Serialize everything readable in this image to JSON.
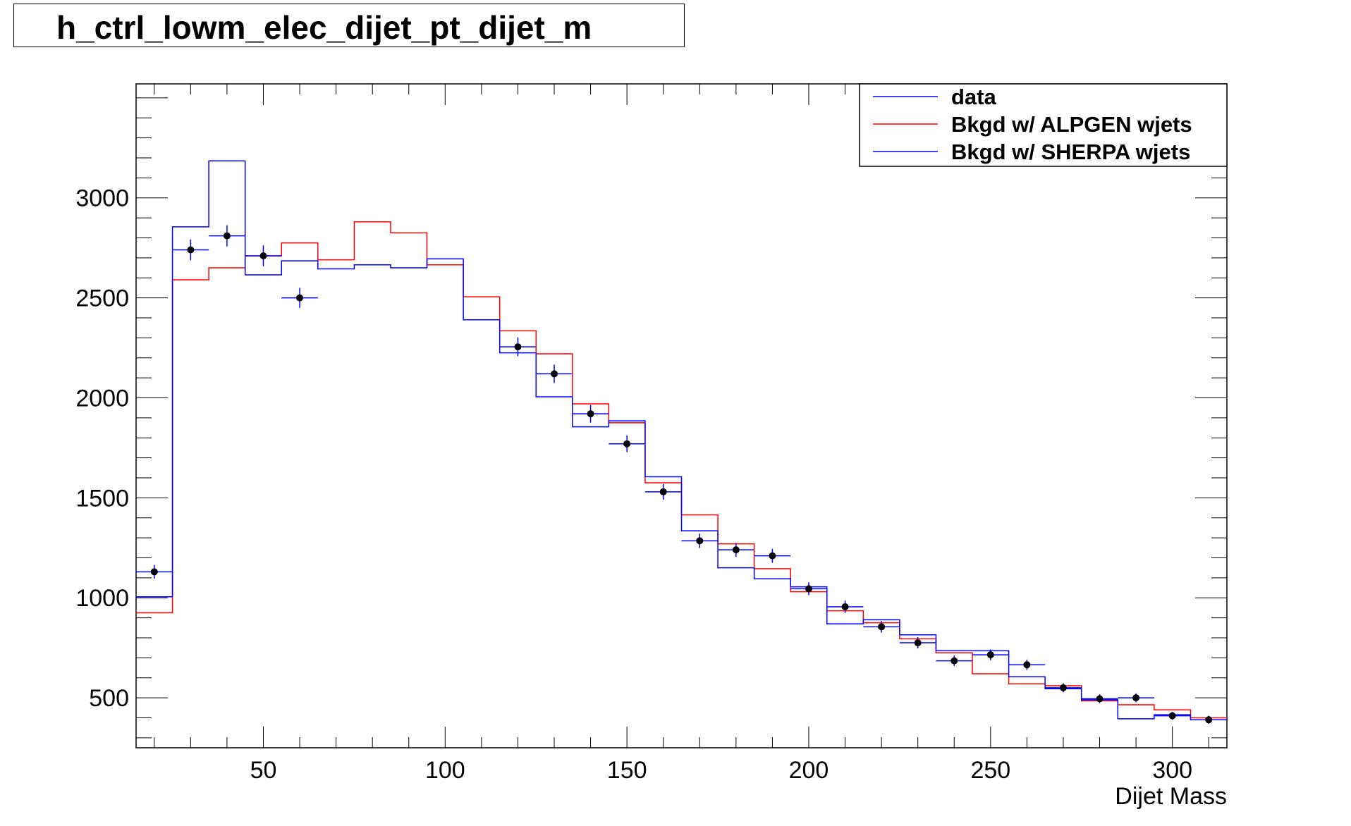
{
  "chart_data": {
    "type": "line",
    "title": "h_ctrl_lowm_elec_dijet_pt_dijet_m",
    "xlabel": "Dijet Mass",
    "ylabel": "",
    "xlim": [
      15,
      315
    ],
    "ylim": [
      250,
      3570
    ],
    "x_ticks": [
      50,
      100,
      150,
      200,
      250,
      300
    ],
    "x_tick_labels": [
      "50",
      "100",
      "150",
      "200",
      "250",
      "300"
    ],
    "y_ticks": [
      500,
      1000,
      1500,
      2000,
      2500,
      3000
    ],
    "y_tick_labels": [
      "500",
      "1000",
      "1500",
      "2000",
      "2500",
      "3000"
    ],
    "bin_edges": [
      15,
      25,
      35,
      45,
      55,
      65,
      75,
      85,
      95,
      105,
      115,
      125,
      135,
      145,
      155,
      165,
      175,
      185,
      195,
      205,
      215,
      225,
      235,
      245,
      255,
      265,
      275,
      285,
      295,
      305,
      315
    ],
    "bin_centers": [
      20,
      30,
      40,
      50,
      60,
      70,
      80,
      90,
      100,
      110,
      120,
      130,
      140,
      150,
      160,
      170,
      180,
      190,
      200,
      210,
      220,
      230,
      240,
      250,
      260,
      270,
      280,
      290,
      300,
      310
    ],
    "legend_position": "top-right",
    "colors": {
      "data": "#000000",
      "alpgen": "#ff0000",
      "sherpa": "#0000ff"
    },
    "series": [
      {
        "name": "data",
        "key": "data",
        "values": [
          1130,
          2740,
          2810,
          2710,
          2500,
          null,
          null,
          null,
          null,
          null,
          2255,
          2120,
          1920,
          1770,
          1530,
          1285,
          1240,
          1210,
          1045,
          955,
          855,
          775,
          685,
          715,
          665,
          550,
          495,
          500,
          410,
          390
        ],
        "errors": [
          34,
          52,
          53,
          52,
          50,
          null,
          null,
          null,
          null,
          null,
          47,
          46,
          44,
          42,
          39,
          36,
          35,
          35,
          32,
          31,
          29,
          28,
          26,
          27,
          26,
          23,
          22,
          22,
          20,
          20
        ]
      },
      {
        "name": "Bkgd w/ ALPGEN wjets",
        "key": "alpgen",
        "values": [
          925,
          2590,
          2650,
          2710,
          2775,
          2690,
          2880,
          2825,
          2665,
          2505,
          2335,
          2220,
          1970,
          1875,
          1575,
          1415,
          1270,
          1145,
          1030,
          935,
          875,
          795,
          725,
          620,
          570,
          560,
          485,
          465,
          440,
          400
        ]
      },
      {
        "name": "Bkgd w/ SHERPA wjets",
        "key": "sherpa",
        "values": [
          1005,
          2855,
          3185,
          2615,
          2685,
          2645,
          2665,
          2650,
          2695,
          2390,
          2225,
          2005,
          1855,
          1885,
          1605,
          1335,
          1150,
          1095,
          1055,
          870,
          890,
          815,
          735,
          735,
          605,
          545,
          490,
          395,
          415,
          390
        ]
      }
    ]
  }
}
